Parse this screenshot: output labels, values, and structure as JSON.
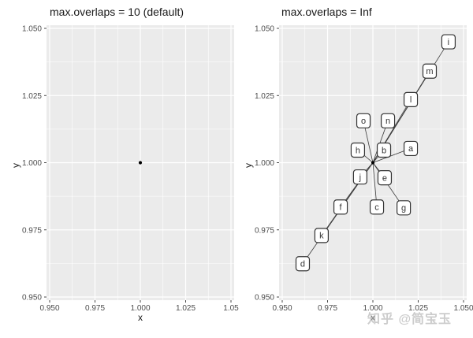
{
  "colors": {
    "panel_bg": "#EBEBEB",
    "grid": "#FFFFFF",
    "tick_mark": "#333333",
    "tick_text": "#4D4D4D",
    "title_text": "#1A1A1A",
    "segment": "#3c3c3c",
    "label_box_fill": "#FFFFFF",
    "label_box_border": "#333333",
    "label_text": "#333333",
    "point": "#000000",
    "watermark": "#C7C7C7"
  },
  "watermark": {
    "text": "知乎 @简宝玉"
  },
  "chart_data": [
    {
      "type": "scatter",
      "title": "max.overlaps = 10 (default)",
      "xlabel": "x",
      "ylabel": "y",
      "xlim": [
        0.95,
        1.05
      ],
      "ylim": [
        0.95,
        1.05
      ],
      "xticks": [
        0.95,
        0.975,
        1.0,
        1.025,
        1.05
      ],
      "xtick_labels": [
        "0.950",
        "0.975",
        "1.000",
        "1.025",
        "1.05"
      ],
      "yticks": [
        0.95,
        0.975,
        1.0,
        1.025,
        1.05
      ],
      "ytick_labels": [
        "0.950",
        "0.975",
        "1.000",
        "1.025",
        "1.050"
      ],
      "grid": true,
      "legend": "none",
      "points": [
        {
          "x": 1.0,
          "y": 1.0
        }
      ],
      "labels": []
    },
    {
      "type": "scatter",
      "title": "max.overlaps = Inf",
      "xlabel": "x",
      "ylabel": "y",
      "xlim": [
        0.95,
        1.05
      ],
      "ylim": [
        0.95,
        1.05
      ],
      "xticks": [
        0.95,
        0.975,
        1.0,
        1.025,
        1.05
      ],
      "xtick_labels": [
        "0.950",
        "0.975",
        "1.000",
        "1.025",
        "1.050"
      ],
      "yticks": [
        0.95,
        0.975,
        1.0,
        1.025,
        1.05
      ],
      "ytick_labels": [
        "0.950",
        "0.975",
        "1.000",
        "1.025",
        "1.050"
      ],
      "grid": true,
      "legend": "none",
      "points": [
        {
          "x": 1.0,
          "y": 1.0
        }
      ],
      "label_anchor": {
        "x": 1.0,
        "y": 1.0
      },
      "labels": [
        {
          "text": "a",
          "x": 1.0209,
          "y": 1.0053
        },
        {
          "text": "b",
          "x": 1.0061,
          "y": 1.0047
        },
        {
          "text": "c",
          "x": 1.0022,
          "y": 0.9835
        },
        {
          "text": "d",
          "x": 0.9613,
          "y": 0.9624
        },
        {
          "text": "e",
          "x": 1.0065,
          "y": 0.9944
        },
        {
          "text": "f",
          "x": 0.9822,
          "y": 0.9835
        },
        {
          "text": "g",
          "x": 1.017,
          "y": 0.9832
        },
        {
          "text": "h",
          "x": 0.9917,
          "y": 1.0047
        },
        {
          "text": "i",
          "x": 1.0417,
          "y": 1.045
        },
        {
          "text": "j",
          "x": 0.993,
          "y": 0.9947
        },
        {
          "text": "k",
          "x": 0.9717,
          "y": 0.9729
        },
        {
          "text": "l",
          "x": 1.0209,
          "y": 1.0235
        },
        {
          "text": "m",
          "x": 1.0313,
          "y": 1.0341
        },
        {
          "text": "n",
          "x": 1.0083,
          "y": 1.0156
        },
        {
          "text": "o",
          "x": 0.9948,
          "y": 1.0156
        }
      ]
    }
  ]
}
